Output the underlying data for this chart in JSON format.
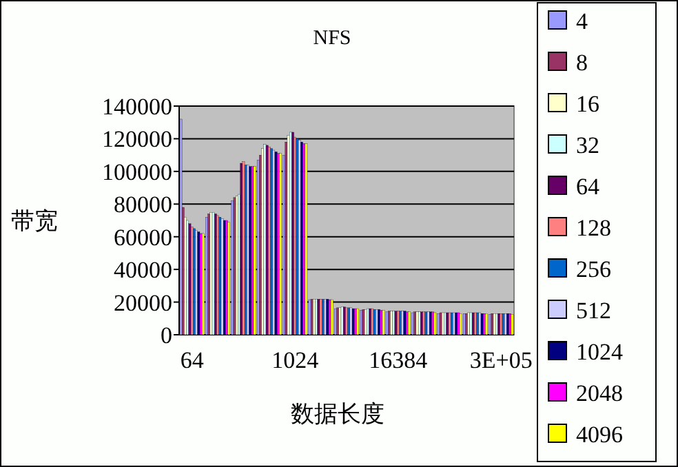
{
  "chart_data": {
    "type": "bar",
    "title": "NFS",
    "xlabel": "数据长度",
    "ylabel": "带宽",
    "categories": [
      "64",
      null,
      null,
      null,
      "1024",
      null,
      null,
      null,
      "16384",
      null,
      null,
      null,
      "3E+05"
    ],
    "ylim": [
      0,
      140000
    ],
    "yticks": [
      0,
      20000,
      40000,
      60000,
      80000,
      100000,
      120000,
      140000
    ],
    "grid": "y",
    "legend": "right",
    "series": [
      {
        "name": "4",
        "color": "#9999ff",
        "values": [
          132000,
          72000,
          82000,
          107000,
          110000,
          21500,
          16000,
          15000,
          14000,
          13500,
          13000,
          13000,
          12500
        ]
      },
      {
        "name": "8",
        "color": "#993366",
        "values": [
          78000,
          74000,
          84000,
          110000,
          118000,
          21800,
          16500,
          15500,
          14500,
          14000,
          13500,
          13000,
          13000
        ]
      },
      {
        "name": "16",
        "color": "#ffffcc",
        "values": [
          72000,
          75000,
          85000,
          114000,
          122000,
          21800,
          16500,
          15500,
          14500,
          14000,
          13500,
          13500,
          13000
        ]
      },
      {
        "name": "32",
        "color": "#ccffff",
        "values": [
          70000,
          75000,
          86000,
          116500,
          124000,
          21800,
          17000,
          16000,
          14500,
          14000,
          13500,
          13500,
          13000
        ]
      },
      {
        "name": "64",
        "color": "#660066",
        "values": [
          68000,
          74000,
          105000,
          116000,
          124000,
          21800,
          17000,
          16000,
          14500,
          14000,
          13500,
          13500,
          13000
        ]
      },
      {
        "name": "128",
        "color": "#ff8080",
        "values": [
          66000,
          73000,
          106000,
          115000,
          121000,
          21800,
          16500,
          16000,
          14500,
          14000,
          13500,
          13500,
          13000
        ]
      },
      {
        "name": "256",
        "color": "#0066cc",
        "values": [
          65000,
          72000,
          104000,
          114000,
          120000,
          21800,
          16500,
          15500,
          14500,
          14000,
          13500,
          13500,
          13000
        ]
      },
      {
        "name": "512",
        "color": "#ccccff",
        "values": [
          64000,
          71000,
          104000,
          113000,
          119000,
          21800,
          16500,
          15500,
          14500,
          14000,
          13500,
          13500,
          13000
        ]
      },
      {
        "name": "1024",
        "color": "#000080",
        "values": [
          63000,
          70000,
          103000,
          112000,
          118000,
          21800,
          16000,
          15500,
          14500,
          14000,
          13500,
          13000,
          13000
        ]
      },
      {
        "name": "2048",
        "color": "#ff00ff",
        "values": [
          62000,
          70000,
          103000,
          111000,
          117000,
          21500,
          16000,
          15000,
          14000,
          14000,
          13500,
          13000,
          13000
        ]
      },
      {
        "name": "4096",
        "color": "#ffff00",
        "values": [
          62000,
          69000,
          103000,
          111000,
          117000,
          21500,
          16000,
          15000,
          14000,
          13500,
          13000,
          13000,
          12500
        ]
      }
    ]
  }
}
